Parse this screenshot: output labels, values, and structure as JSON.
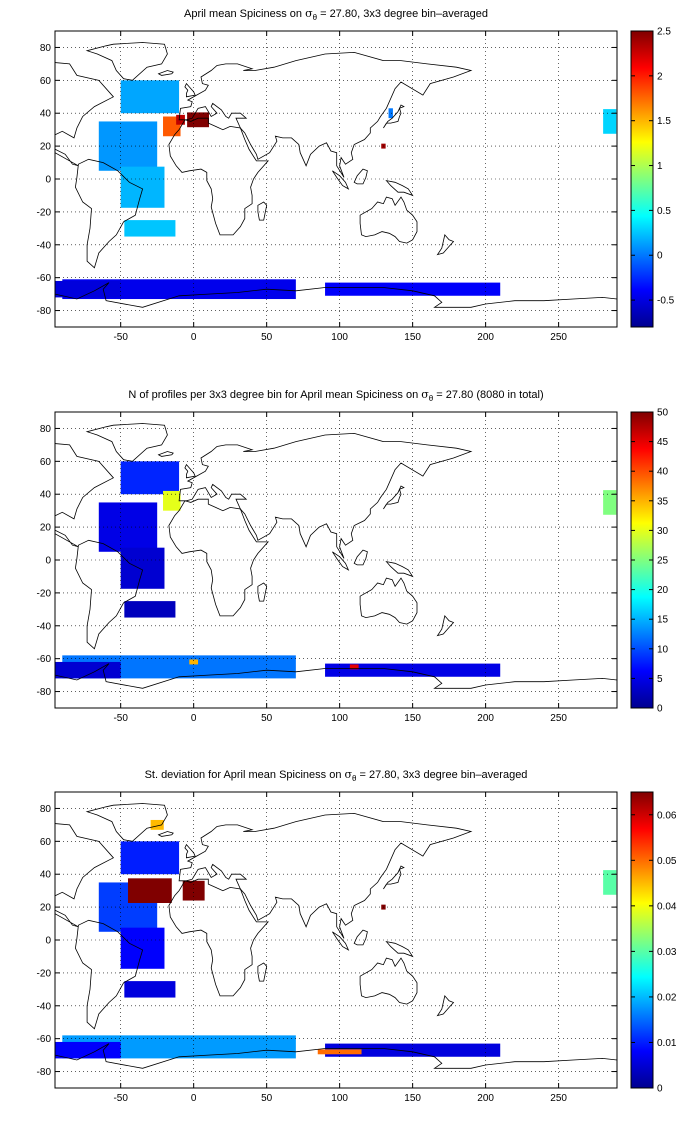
{
  "chart_data": [
    {
      "type": "heatmap",
      "title": "April mean Spiciness on σθ = 27.80, 3x3 degree bin–averaged",
      "title_parts": [
        "April mean Spiciness on ",
        "σ",
        "θ",
        " = 27.80, 3x3 degree bin–averaged"
      ],
      "xlim": [
        -95,
        290
      ],
      "ylim": [
        -90,
        90
      ],
      "xticks": [
        -50,
        0,
        50,
        100,
        150,
        200,
        250
      ],
      "yticks": [
        -80,
        -60,
        -40,
        -20,
        0,
        20,
        40,
        60,
        80
      ],
      "grid": true,
      "colorbar": {
        "ticks": [
          -0.5,
          0,
          0.5,
          1,
          1.5,
          2,
          2.5
        ],
        "range": [
          -0.8,
          2.5
        ],
        "colormap": "jet"
      },
      "cells": [
        {
          "lon": -45,
          "lat": 20,
          "w": 40,
          "h": 30,
          "value": 0.1
        },
        {
          "lon": -30,
          "lat": 50,
          "w": 40,
          "h": 20,
          "value": 0.15
        },
        {
          "lon": -15,
          "lat": 32,
          "w": 12,
          "h": 12,
          "value": 1.8
        },
        {
          "lon": -9,
          "lat": 36,
          "w": 6,
          "h": 6,
          "value": 2.3
        },
        {
          "lon": 3,
          "lat": 36,
          "w": 15,
          "h": 9,
          "value": 2.5
        },
        {
          "lon": -35,
          "lat": -5,
          "w": 30,
          "h": 25,
          "value": 0.2
        },
        {
          "lon": -30,
          "lat": -30,
          "w": 35,
          "h": 10,
          "value": 0.25
        },
        {
          "lon": -10,
          "lat": -67,
          "w": 160,
          "h": 12,
          "value": -0.45
        },
        {
          "lon": 150,
          "lat": -67,
          "w": 120,
          "h": 8,
          "value": -0.4
        },
        {
          "lon": -90,
          "lat": -67,
          "w": 80,
          "h": 10,
          "value": -0.5
        },
        {
          "lon": 285,
          "lat": 35,
          "w": 9,
          "h": 15,
          "value": 0.3
        },
        {
          "lon": 130,
          "lat": 20,
          "w": 3,
          "h": 3,
          "value": 2.4
        },
        {
          "lon": 135,
          "lat": 40,
          "w": 3,
          "h": 6,
          "value": 0.0
        }
      ]
    },
    {
      "type": "heatmap",
      "title": "N of profiles per 3x3 degree bin for April mean Spiciness on σθ = 27.80 (8080 in total)",
      "title_parts": [
        "N of profiles per 3x3 degree bin for April mean Spiciness on ",
        "σ",
        "θ",
        " = 27.80 (8080 in total)"
      ],
      "xlim": [
        -95,
        290
      ],
      "ylim": [
        -90,
        90
      ],
      "xticks": [
        -50,
        0,
        50,
        100,
        150,
        200,
        250
      ],
      "yticks": [
        -80,
        -60,
        -40,
        -20,
        0,
        20,
        40,
        60,
        80
      ],
      "grid": true,
      "colorbar": {
        "ticks": [
          0,
          5,
          10,
          15,
          20,
          25,
          30,
          35,
          40,
          45,
          50
        ],
        "range": [
          0,
          50
        ],
        "colormap": "jet"
      },
      "cells": [
        {
          "lon": -45,
          "lat": 20,
          "w": 40,
          "h": 30,
          "value": 5
        },
        {
          "lon": -30,
          "lat": 50,
          "w": 40,
          "h": 20,
          "value": 8
        },
        {
          "lon": -15,
          "lat": 36,
          "w": 12,
          "h": 12,
          "value": 30
        },
        {
          "lon": -35,
          "lat": -5,
          "w": 30,
          "h": 25,
          "value": 4
        },
        {
          "lon": -30,
          "lat": -30,
          "w": 35,
          "h": 10,
          "value": 3
        },
        {
          "lon": -10,
          "lat": -65,
          "w": 160,
          "h": 14,
          "value": 12
        },
        {
          "lon": 150,
          "lat": -67,
          "w": 120,
          "h": 8,
          "value": 5
        },
        {
          "lon": -90,
          "lat": -67,
          "w": 80,
          "h": 10,
          "value": 4
        },
        {
          "lon": 285,
          "lat": 35,
          "w": 9,
          "h": 15,
          "value": 25
        },
        {
          "lon": 110,
          "lat": -65,
          "w": 6,
          "h": 3,
          "value": 45
        },
        {
          "lon": 0,
          "lat": -62,
          "w": 6,
          "h": 3,
          "value": 35
        }
      ]
    },
    {
      "type": "heatmap",
      "title": "St. deviation for April mean Spiciness on σθ = 27.80, 3x3 degree bin–averaged",
      "title_parts": [
        "St. deviation for April mean Spiciness on ",
        "σ",
        "θ",
        " = 27.80, 3x3 degree bin–averaged"
      ],
      "xlim": [
        -95,
        290
      ],
      "ylim": [
        -90,
        90
      ],
      "xticks": [
        -50,
        0,
        50,
        100,
        150,
        200,
        250
      ],
      "yticks": [
        -80,
        -60,
        -40,
        -20,
        0,
        20,
        40,
        60,
        80
      ],
      "grid": true,
      "colorbar": {
        "ticks": [
          0,
          0.01,
          0.02,
          0.03,
          0.04,
          0.05,
          0.06
        ],
        "range": [
          0,
          0.065
        ],
        "colormap": "jet"
      },
      "cells": [
        {
          "lon": -45,
          "lat": 20,
          "w": 40,
          "h": 30,
          "value": 0.012
        },
        {
          "lon": -30,
          "lat": 50,
          "w": 40,
          "h": 20,
          "value": 0.01
        },
        {
          "lon": -30,
          "lat": 30,
          "w": 30,
          "h": 15,
          "value": 0.065
        },
        {
          "lon": 0,
          "lat": 30,
          "w": 15,
          "h": 12,
          "value": 0.065
        },
        {
          "lon": -35,
          "lat": -5,
          "w": 30,
          "h": 25,
          "value": 0.008
        },
        {
          "lon": -30,
          "lat": -30,
          "w": 35,
          "h": 10,
          "value": 0.006
        },
        {
          "lon": -10,
          "lat": -65,
          "w": 160,
          "h": 14,
          "value": 0.018
        },
        {
          "lon": 150,
          "lat": -67,
          "w": 120,
          "h": 8,
          "value": 0.006
        },
        {
          "lon": -90,
          "lat": -67,
          "w": 80,
          "h": 10,
          "value": 0.008
        },
        {
          "lon": 285,
          "lat": 35,
          "w": 9,
          "h": 15,
          "value": 0.03
        },
        {
          "lon": -25,
          "lat": 70,
          "w": 9,
          "h": 6,
          "value": 0.045
        },
        {
          "lon": 100,
          "lat": -68,
          "w": 30,
          "h": 3,
          "value": 0.05
        },
        {
          "lon": 130,
          "lat": 20,
          "w": 3,
          "h": 3,
          "value": 0.065
        }
      ]
    }
  ]
}
